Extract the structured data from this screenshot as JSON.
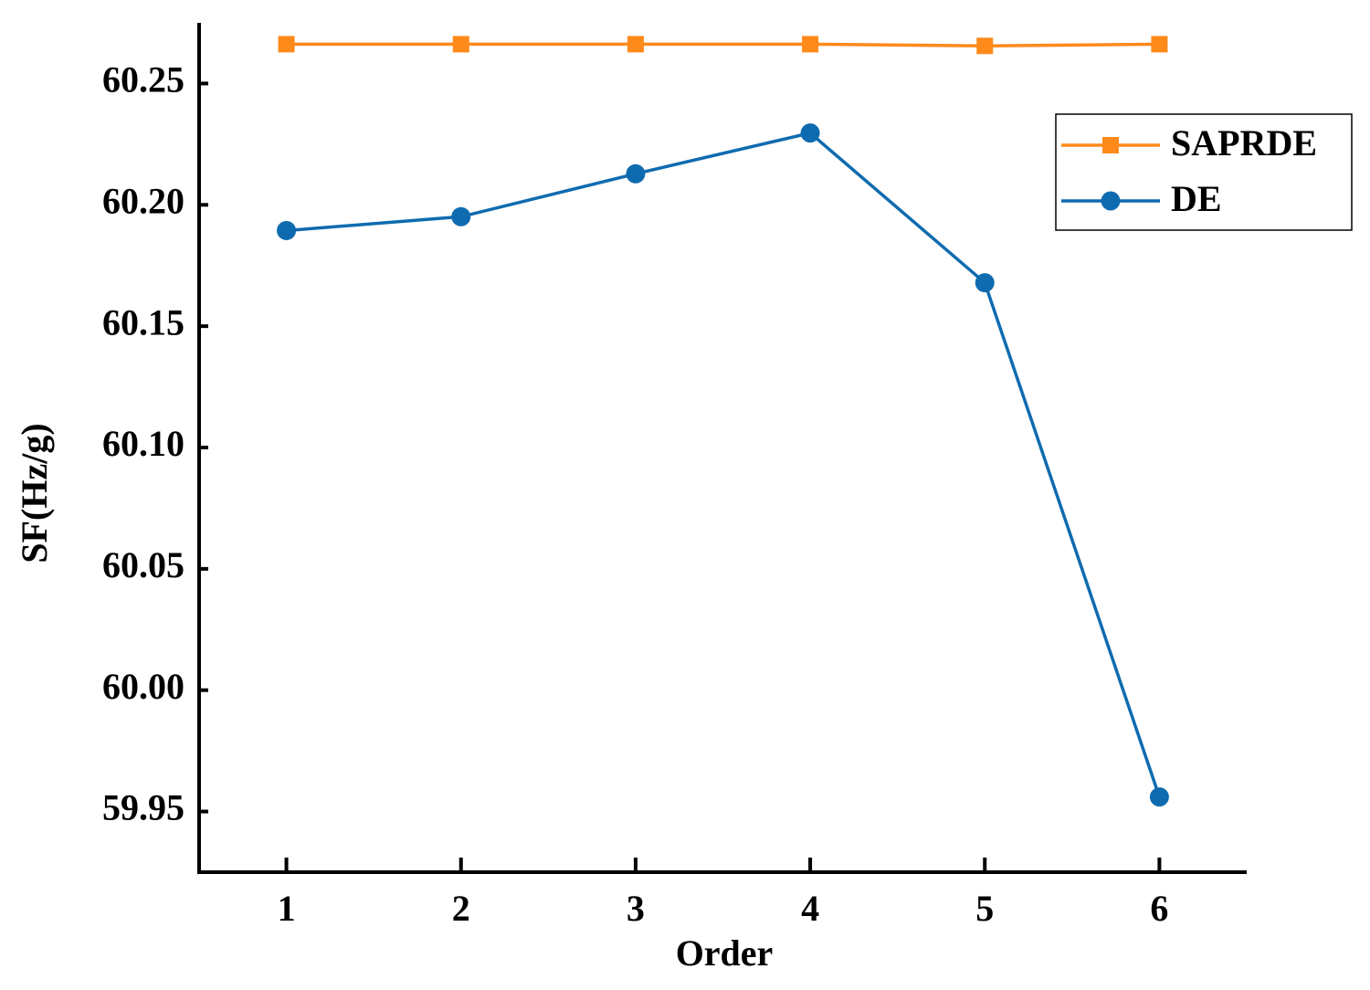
{
  "chart_data": {
    "type": "line",
    "x_label": "Order",
    "y_label": "SF(Hz/g)",
    "x": [
      1,
      2,
      3,
      4,
      5,
      6
    ],
    "xlim": [
      0.5,
      6.5
    ],
    "xticks": [
      1,
      2,
      3,
      4,
      5,
      6
    ],
    "ylim": [
      59.925,
      60.275
    ],
    "yticks": [
      59.95,
      {
        "value": 60.0,
        "label": "60.00"
      },
      60.05,
      {
        "value": 60.1,
        "label": "60.10"
      },
      60.15,
      {
        "value": 60.2,
        "label": "60.20"
      },
      60.25
    ],
    "legend": "upper right",
    "series": [
      {
        "name": "SAPRDE",
        "color": "#ff8a1c",
        "marker": "square",
        "values": [
          60.2662,
          60.2662,
          60.2662,
          60.2662,
          60.2655,
          60.2662
        ]
      },
      {
        "name": "DE",
        "color": "#0f6bb0",
        "marker": "circle",
        "values": [
          60.1894,
          60.1951,
          60.2128,
          60.2296,
          60.1679,
          59.956
        ]
      }
    ]
  }
}
